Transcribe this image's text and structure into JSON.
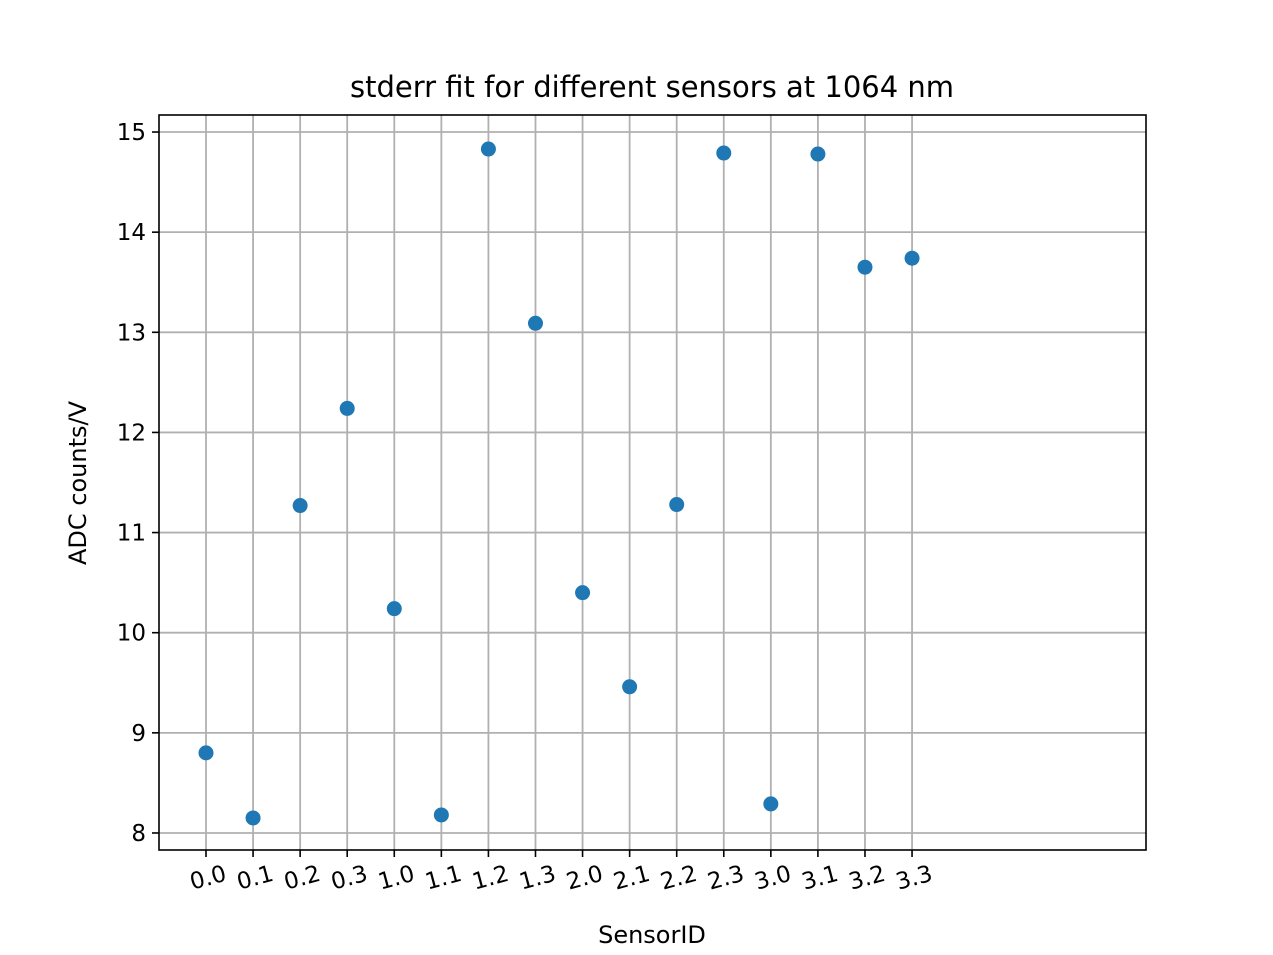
{
  "chart_data": {
    "type": "scatter",
    "title": "stderr fit for different sensors at 1064 nm",
    "xlabel": "SensorID",
    "ylabel": "ADC counts/V",
    "categories": [
      "0.0",
      "0.1",
      "0.2",
      "0.3",
      "1.0",
      "1.1",
      "1.2",
      "1.3",
      "2.0",
      "2.1",
      "2.2",
      "2.3",
      "3.0",
      "3.1",
      "3.2",
      "3.3"
    ],
    "series": [
      {
        "color": "#1f77b4",
        "values": [
          8.8,
          8.15,
          11.27,
          12.24,
          10.24,
          8.18,
          14.83,
          13.09,
          10.4,
          9.46,
          11.28,
          14.79,
          8.29,
          14.78,
          13.65,
          13.74
        ]
      }
    ],
    "yticks": [
      8,
      9,
      10,
      11,
      12,
      13,
      14,
      15
    ],
    "ylim": [
      7.83,
      15.17
    ],
    "grid": true,
    "legend": "none"
  }
}
